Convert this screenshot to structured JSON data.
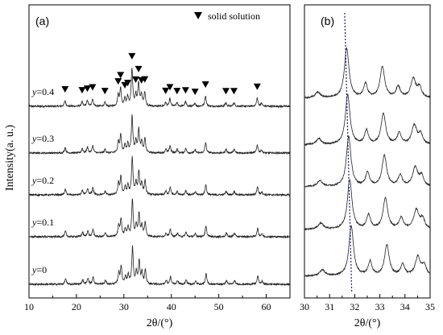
{
  "chart_data": [
    {
      "panel": "(a)",
      "type": "line",
      "xlabel": "2θ/(°)",
      "ylabel": "Intensity(a. u.)",
      "xlim": [
        10,
        65
      ],
      "x_ticks": [
        10,
        20,
        30,
        40,
        50,
        60
      ],
      "legend": {
        "symbol": "▼",
        "label": "solid solution",
        "placement": "top-right"
      },
      "series": [
        {
          "name": "y=0.4",
          "offset": 4
        },
        {
          "name": "y=0.3",
          "offset": 3
        },
        {
          "name": "y=0.2",
          "offset": 2
        },
        {
          "name": "y=0.1",
          "offset": 1
        },
        {
          "name": "y=0",
          "offset": 0
        }
      ],
      "peaks": [
        {
          "x": 17.6,
          "h": 0.15
        },
        {
          "x": 21.2,
          "h": 0.12
        },
        {
          "x": 22.3,
          "h": 0.16
        },
        {
          "x": 23.4,
          "h": 0.2
        },
        {
          "x": 26.0,
          "h": 0.1
        },
        {
          "x": 28.8,
          "h": 0.3
        },
        {
          "x": 29.3,
          "h": 0.48
        },
        {
          "x": 30.2,
          "h": 0.2
        },
        {
          "x": 30.8,
          "h": 0.25
        },
        {
          "x": 31.7,
          "h": 1.0
        },
        {
          "x": 32.5,
          "h": 0.3
        },
        {
          "x": 33.1,
          "h": 0.62
        },
        {
          "x": 33.7,
          "h": 0.3
        },
        {
          "x": 34.4,
          "h": 0.38
        },
        {
          "x": 38.8,
          "h": 0.1
        },
        {
          "x": 39.7,
          "h": 0.2
        },
        {
          "x": 41.2,
          "h": 0.1
        },
        {
          "x": 43.0,
          "h": 0.12
        },
        {
          "x": 45.0,
          "h": 0.08
        },
        {
          "x": 47.2,
          "h": 0.28
        },
        {
          "x": 51.5,
          "h": 0.1
        },
        {
          "x": 53.2,
          "h": 0.1
        },
        {
          "x": 58.1,
          "h": 0.22
        },
        {
          "x": 59.0,
          "h": 0.08
        }
      ],
      "marker_positions": [
        17.6,
        21.2,
        22.3,
        23.4,
        26.0,
        28.8,
        29.3,
        30.2,
        30.8,
        31.7,
        32.5,
        33.1,
        33.7,
        34.4,
        38.8,
        39.7,
        41.2,
        43.0,
        45.0,
        47.2,
        51.5,
        53.2,
        58.1
      ]
    },
    {
      "panel": "(b)",
      "type": "line",
      "xlabel": "2θ/(°)",
      "xlim": [
        30,
        35
      ],
      "x_ticks": [
        30,
        31,
        32,
        33,
        34,
        35
      ],
      "main_peak_positions": [
        31.68,
        31.72,
        31.76,
        31.8,
        31.86
      ],
      "reference_line": {
        "x_top": 31.6,
        "x_bottom": 31.88,
        "style": "dotted",
        "color": "#1a1a8c"
      }
    }
  ]
}
